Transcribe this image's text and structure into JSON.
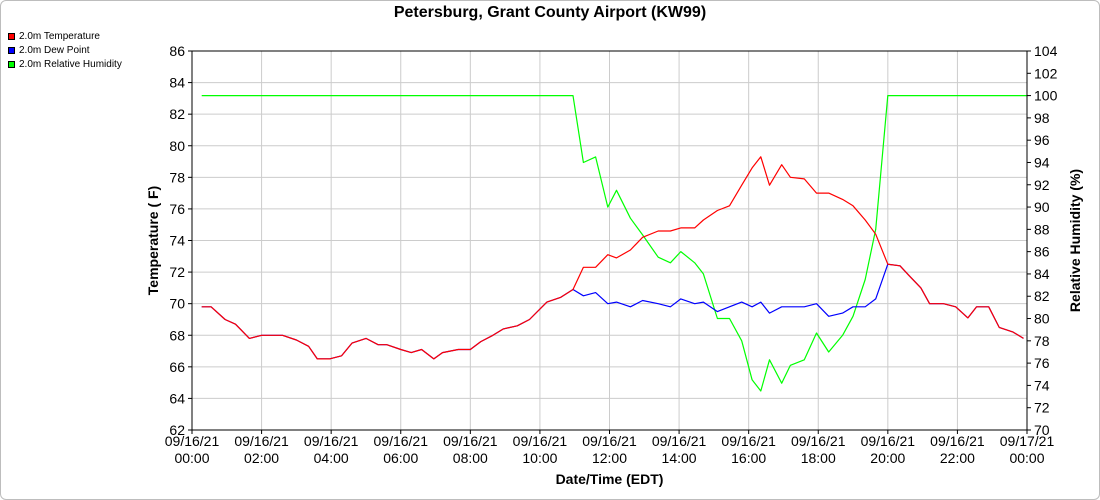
{
  "chart_data": {
    "type": "line",
    "title": "Petersburg, Grant County Airport (KW99)",
    "xlabel": "Date/Time (EDT)",
    "ylabel_left": "Temperature ( F)",
    "ylabel_right": "Relative Humidity (%)",
    "ylim_left": [
      62,
      86
    ],
    "ylim_right": [
      70,
      104
    ],
    "yticks_left": [
      "62",
      "64",
      "66",
      "68",
      "70",
      "72",
      "74",
      "76",
      "78",
      "80",
      "82",
      "84",
      "86"
    ],
    "yticks_right": [
      "70",
      "72",
      "74",
      "76",
      "78",
      "80",
      "82",
      "84",
      "86",
      "88",
      "90",
      "92",
      "94",
      "96",
      "98",
      "100",
      "102",
      "104"
    ],
    "x_hours_range": [
      0,
      24
    ],
    "xticks": [
      {
        "h": 0,
        "date": "09/16/21",
        "time": "00:00"
      },
      {
        "h": 2,
        "date": "09/16/21",
        "time": "02:00"
      },
      {
        "h": 4,
        "date": "09/16/21",
        "time": "04:00"
      },
      {
        "h": 6,
        "date": "09/16/21",
        "time": "06:00"
      },
      {
        "h": 8,
        "date": "09/16/21",
        "time": "08:00"
      },
      {
        "h": 10,
        "date": "09/16/21",
        "time": "10:00"
      },
      {
        "h": 12,
        "date": "09/16/21",
        "time": "12:00"
      },
      {
        "h": 14,
        "date": "09/16/21",
        "time": "14:00"
      },
      {
        "h": 16,
        "date": "09/16/21",
        "time": "16:00"
      },
      {
        "h": 18,
        "date": "09/16/21",
        "time": "18:00"
      },
      {
        "h": 20,
        "date": "09/16/21",
        "time": "20:00"
      },
      {
        "h": 22,
        "date": "09/16/21",
        "time": "22:00"
      },
      {
        "h": 24,
        "date": "09/17/21",
        "time": "00:00"
      }
    ],
    "grid": true,
    "legend_position": "top-left",
    "series": [
      {
        "name": "2.0m Temperature",
        "color": "#ff0000",
        "axis": "left",
        "x": [
          0.28,
          0.55,
          0.95,
          1.25,
          1.65,
          2.0,
          2.6,
          3.0,
          3.35,
          3.6,
          3.95,
          4.3,
          4.6,
          5.0,
          5.35,
          5.6,
          6.0,
          6.3,
          6.6,
          6.95,
          7.2,
          7.65,
          8.0,
          8.3,
          8.65,
          8.95,
          9.35,
          9.7,
          10.2,
          10.6,
          10.95,
          11.25,
          11.6,
          11.95,
          12.2,
          12.6,
          12.95,
          13.4,
          13.75,
          14.05,
          14.45,
          14.7,
          15.1,
          15.45,
          15.8,
          16.1,
          16.35,
          16.6,
          16.95,
          17.2,
          17.6,
          17.95,
          18.3,
          18.7,
          19.0,
          19.35,
          19.65,
          20.0,
          20.35,
          20.6,
          20.95,
          21.2,
          21.6,
          21.95,
          22.3,
          22.55,
          22.9,
          23.2,
          23.6,
          23.9
        ],
        "y": [
          69.8,
          69.8,
          69.0,
          68.7,
          67.8,
          68.0,
          68.0,
          67.7,
          67.3,
          66.5,
          66.5,
          66.7,
          67.5,
          67.8,
          67.4,
          67.4,
          67.1,
          66.9,
          67.1,
          66.5,
          66.9,
          67.1,
          67.1,
          67.6,
          68.0,
          68.4,
          68.6,
          69.0,
          70.1,
          70.4,
          70.9,
          72.3,
          72.3,
          73.1,
          72.9,
          73.4,
          74.2,
          74.6,
          74.6,
          74.8,
          74.8,
          75.3,
          75.9,
          76.2,
          77.5,
          78.6,
          79.3,
          77.5,
          78.8,
          78.0,
          77.9,
          77.0,
          77.0,
          76.6,
          76.2,
          75.3,
          74.4,
          72.5,
          72.4,
          71.8,
          71.0,
          70.0,
          70.0,
          69.8,
          69.1,
          69.8,
          69.8,
          68.5,
          68.2,
          67.8
        ]
      },
      {
        "name": "2.0m Dew Point",
        "color": "#0000ff",
        "axis": "left",
        "x": [
          0.28,
          0.55,
          0.95,
          1.25,
          1.65,
          2.0,
          2.6,
          3.0,
          3.35,
          3.6,
          3.95,
          4.3,
          4.6,
          5.0,
          5.35,
          5.6,
          6.0,
          6.3,
          6.6,
          6.95,
          7.2,
          7.65,
          8.0,
          8.3,
          8.65,
          8.95,
          9.35,
          9.7,
          10.2,
          10.6,
          10.95,
          11.25,
          11.6,
          11.95,
          12.2,
          12.6,
          12.95,
          13.4,
          13.75,
          14.05,
          14.45,
          14.7,
          15.1,
          15.45,
          15.8,
          16.1,
          16.35,
          16.6,
          16.95,
          17.2,
          17.6,
          17.95,
          18.3,
          18.7,
          19.0,
          19.35,
          19.65,
          20.0,
          20.35,
          20.6,
          20.95,
          21.2,
          21.6,
          21.95,
          22.3,
          22.55,
          22.9,
          23.2,
          23.6,
          23.9
        ],
        "y": [
          69.8,
          69.8,
          69.0,
          68.7,
          67.8,
          68.0,
          68.0,
          67.7,
          67.3,
          66.5,
          66.5,
          66.7,
          67.5,
          67.8,
          67.4,
          67.4,
          67.1,
          66.9,
          67.1,
          66.5,
          66.9,
          67.1,
          67.1,
          67.6,
          68.0,
          68.4,
          68.6,
          69.0,
          70.1,
          70.4,
          70.9,
          70.5,
          70.7,
          70.0,
          70.1,
          69.8,
          70.2,
          70.0,
          69.8,
          70.3,
          70.0,
          70.1,
          69.5,
          69.8,
          70.1,
          69.8,
          70.1,
          69.4,
          69.8,
          69.8,
          69.8,
          70.0,
          69.2,
          69.4,
          69.8,
          69.8,
          70.3,
          72.5,
          72.4,
          71.8,
          71.0,
          70.0,
          70.0,
          69.8,
          69.1,
          69.8,
          69.8,
          68.5,
          68.2,
          67.8
        ]
      },
      {
        "name": "2.0m Relative Humidity",
        "color": "#00ff00",
        "axis": "right",
        "x": [
          0.28,
          10.95,
          11.25,
          11.6,
          11.95,
          12.2,
          12.6,
          12.95,
          13.4,
          13.75,
          14.05,
          14.45,
          14.7,
          15.1,
          15.45,
          15.8,
          16.1,
          16.35,
          16.6,
          16.95,
          17.2,
          17.6,
          17.95,
          18.3,
          18.7,
          19.0,
          19.35,
          19.65,
          20.0,
          24.0
        ],
        "y": [
          100,
          100,
          94,
          94.5,
          90,
          91.5,
          89,
          87.5,
          85.5,
          85,
          86,
          85,
          84,
          80,
          80,
          78,
          74.5,
          73.5,
          76.3,
          74.2,
          75.8,
          76.3,
          78.7,
          77,
          78.5,
          80.2,
          83.5,
          88,
          100,
          100
        ]
      }
    ]
  }
}
